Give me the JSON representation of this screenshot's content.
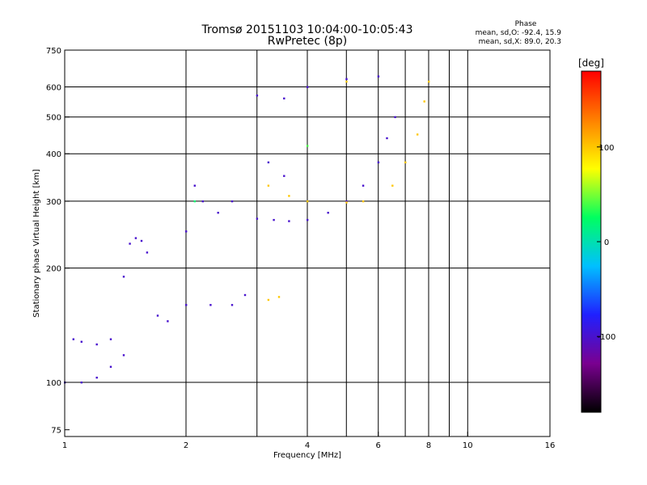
{
  "chart_data": {
    "type": "scatter",
    "title": "Tromsø 20151103 10:04:00-10:05:43",
    "subtitle": "RwPretec (8p)",
    "xlabel": "Frequency [MHz]",
    "ylabel": "Stationary phase Virtual Height [km]",
    "x_scale": "log",
    "y_scale": "log",
    "xlim": [
      1,
      16
    ],
    "ylim": [
      72,
      750
    ],
    "x_ticks": [
      1,
      2,
      4,
      6,
      8,
      10,
      16
    ],
    "y_ticks": [
      75,
      100,
      200,
      300,
      400,
      500,
      600,
      750
    ],
    "x_gridlines": [
      2,
      3,
      4,
      5,
      6,
      7,
      8,
      9,
      10
    ],
    "y_gridlines": [
      100,
      200,
      300,
      400,
      500,
      600
    ],
    "phase_info": {
      "heading": "Phase",
      "line_o": "mean, sd,O: -92.4, 15.9",
      "line_x": "mean, sd,X: 89.0, 20.3"
    },
    "colorbar": {
      "label": "[deg]",
      "range": [
        -180,
        180
      ],
      "ticks": [
        100,
        0,
        -100
      ],
      "tick_labels": [
        "100",
        "0",
        "-100"
      ],
      "colors": [
        "#000000",
        "#7a0090",
        "#2020ff",
        "#00c0ff",
        "#00ff60",
        "#ffff00",
        "#ff8000",
        "#ff0000"
      ]
    },
    "series": [
      {
        "points": [
          [
            1.0,
            100,
            -100
          ],
          [
            1.1,
            100,
            -100
          ],
          [
            1.2,
            103,
            -100
          ],
          [
            1.3,
            110,
            -100
          ],
          [
            1.4,
            118,
            -100
          ],
          [
            1.05,
            130,
            -100
          ],
          [
            1.1,
            128,
            -100
          ],
          [
            1.2,
            126,
            -100
          ],
          [
            1.3,
            130,
            -100
          ],
          [
            1.45,
            232,
            -100
          ],
          [
            1.5,
            240,
            -100
          ],
          [
            1.55,
            236,
            -100
          ],
          [
            1.6,
            220,
            -100
          ],
          [
            1.4,
            190,
            -100
          ],
          [
            1.7,
            150,
            -100
          ],
          [
            1.8,
            145,
            -100
          ],
          [
            2.0,
            250,
            -100
          ],
          [
            2.1,
            330,
            -100
          ],
          [
            2.2,
            300,
            -100
          ],
          [
            2.4,
            280,
            -100
          ],
          [
            2.6,
            300,
            -100
          ],
          [
            2.0,
            160,
            -100
          ],
          [
            2.3,
            160,
            -100
          ],
          [
            2.6,
            160,
            -100
          ],
          [
            2.8,
            170,
            -100
          ],
          [
            3.0,
            270,
            -100
          ],
          [
            3.3,
            268,
            -100
          ],
          [
            3.6,
            266,
            -100
          ],
          [
            4.0,
            268,
            -100
          ],
          [
            4.5,
            280,
            -100
          ],
          [
            5.0,
            300,
            -100
          ],
          [
            5.5,
            330,
            -100
          ],
          [
            6.0,
            380,
            -100
          ],
          [
            6.3,
            440,
            -100
          ],
          [
            6.6,
            500,
            -100
          ],
          [
            3.0,
            570,
            -100
          ],
          [
            3.5,
            560,
            -100
          ],
          [
            4.0,
            600,
            -100
          ],
          [
            5.0,
            630,
            -100
          ],
          [
            6.0,
            640,
            -100
          ],
          [
            3.2,
            380,
            -100
          ],
          [
            3.5,
            350,
            -100
          ],
          [
            3.2,
            330,
            100
          ],
          [
            3.6,
            310,
            100
          ],
          [
            4.0,
            300,
            100
          ],
          [
            5.0,
            298,
            100
          ],
          [
            5.5,
            300,
            100
          ],
          [
            6.5,
            330,
            100
          ],
          [
            7.0,
            380,
            100
          ],
          [
            7.5,
            450,
            100
          ],
          [
            7.8,
            550,
            100
          ],
          [
            8.0,
            620,
            100
          ],
          [
            3.2,
            165,
            100
          ],
          [
            3.4,
            168,
            100
          ],
          [
            5.0,
            620,
            100
          ],
          [
            2.1,
            300,
            20
          ],
          [
            4.0,
            420,
            40
          ]
        ]
      }
    ]
  }
}
